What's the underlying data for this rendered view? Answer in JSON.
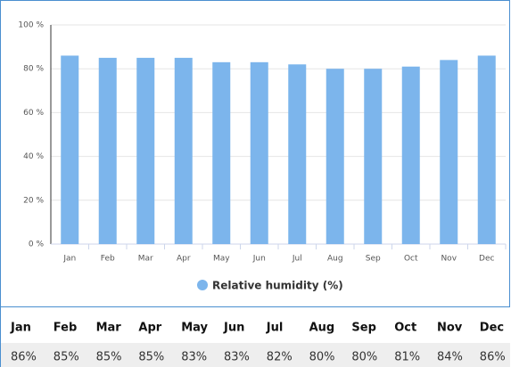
{
  "chart_data": {
    "type": "bar",
    "categories": [
      "Jan",
      "Feb",
      "Mar",
      "Apr",
      "May",
      "Jun",
      "Jul",
      "Aug",
      "Sep",
      "Oct",
      "Nov",
      "Dec"
    ],
    "series": [
      {
        "name": "Relative humidity (%)",
        "color": "#7cb5ec",
        "values": [
          86,
          85,
          85,
          85,
          83,
          83,
          82,
          80,
          80,
          81,
          84,
          86
        ]
      }
    ],
    "value_labels": [
      "86%",
      "85%",
      "85%",
      "85%",
      "83%",
      "83%",
      "82%",
      "80%",
      "80%",
      "81%",
      "84%",
      "86%"
    ],
    "ylim": [
      0,
      100
    ],
    "yticks": [
      {
        "value": 0,
        "label": "0 %"
      },
      {
        "value": 20,
        "label": "20 %"
      },
      {
        "value": 40,
        "label": "40 %"
      },
      {
        "value": 60,
        "label": "60 %"
      },
      {
        "value": 80,
        "label": "80 %"
      },
      {
        "value": 100,
        "label": "100 %"
      }
    ],
    "grid": true
  }
}
